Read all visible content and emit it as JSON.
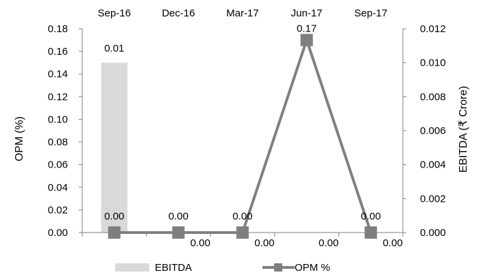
{
  "chart_data": {
    "type": "bar+line",
    "categories": [
      "Sep-16",
      "Dec-16",
      "Mar-17",
      "Jun-17",
      "Sep-17"
    ],
    "ylabel_left": "OPM (%)",
    "ylabel_right": "EBITDA (₹ Crore)",
    "ylim_left": [
      0,
      0.18
    ],
    "ylim_right": [
      0,
      0.012
    ],
    "left_ticks": [
      "0.00",
      "0.02",
      "0.04",
      "0.06",
      "0.08",
      "0.10",
      "0.12",
      "0.14",
      "0.16",
      "0.18"
    ],
    "right_ticks": [
      "0.000",
      "0.002",
      "0.004",
      "0.006",
      "0.008",
      "0.010",
      "0.012"
    ],
    "grid": false,
    "legend_position": "bottom",
    "series": [
      {
        "name": "EBITDA",
        "kind": "bar",
        "axis": "right",
        "color": "#d9d9d9",
        "values": [
          0.01,
          0,
          0,
          0,
          0
        ],
        "labels": [
          "0.01",
          "0.00",
          "0.00",
          "0.00",
          "0.00"
        ]
      },
      {
        "name": "OPM %",
        "kind": "line",
        "axis": "left",
        "color": "#7f7f7f",
        "marker": "square",
        "values": [
          0,
          0,
          0,
          0.17,
          0
        ],
        "labels": [
          "0.00",
          "0.00",
          "0.00",
          "0.17",
          "0.00"
        ]
      }
    ]
  }
}
